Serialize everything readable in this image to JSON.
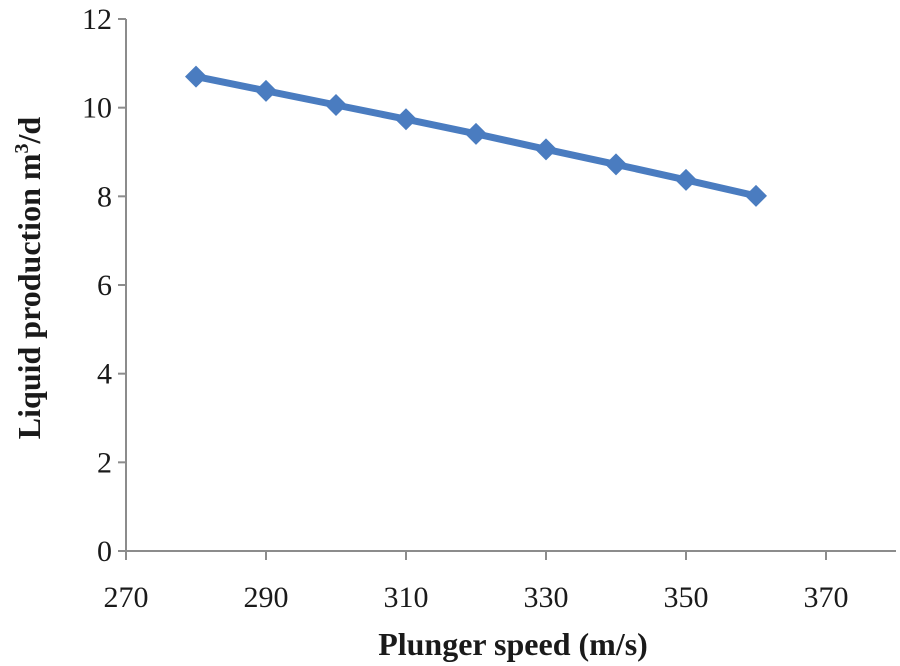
{
  "chart_data": {
    "type": "line",
    "title": "",
    "xlabel": "Plunger speed (m/s)",
    "ylabel_main": "Liquid production m",
    "ylabel_sup": "3",
    "ylabel_tail": "/d",
    "xlim": [
      270,
      380
    ],
    "ylim": [
      0,
      12
    ],
    "x_ticks": [
      270,
      290,
      310,
      330,
      350,
      370
    ],
    "y_ticks": [
      0,
      2,
      4,
      6,
      8,
      10,
      12
    ],
    "grid": false,
    "legend": "none",
    "series": [
      {
        "name": "Liquid production",
        "color": "#4a7cc0",
        "marker": "diamond",
        "x": [
          280,
          290,
          300,
          310,
          320,
          330,
          340,
          350,
          360
        ],
        "values": [
          10.7,
          10.38,
          10.06,
          9.74,
          9.41,
          9.06,
          8.72,
          8.37,
          8.01
        ]
      }
    ]
  }
}
